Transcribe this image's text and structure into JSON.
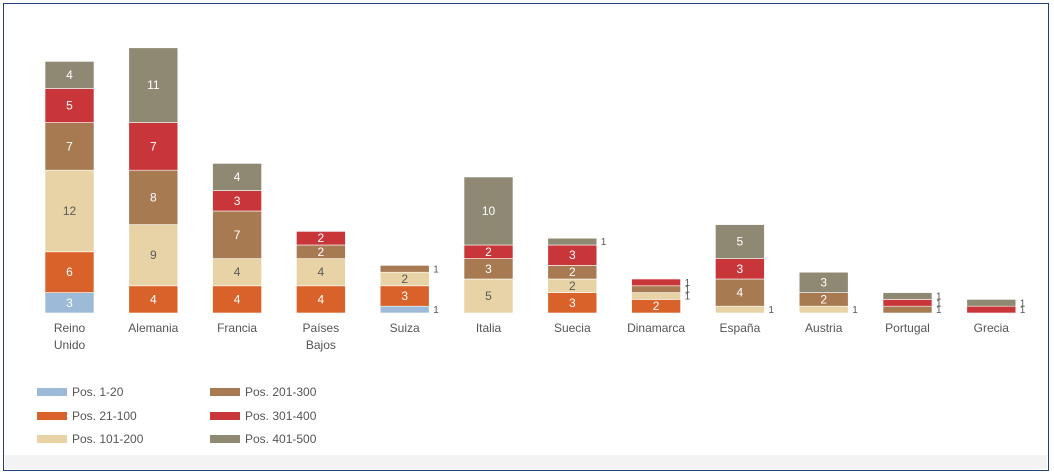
{
  "chart_data": {
    "type": "bar",
    "stacked": true,
    "categories": [
      [
        "Reino",
        "Unido"
      ],
      [
        "Alemania"
      ],
      [
        "Francia"
      ],
      [
        "Países",
        "Bajos"
      ],
      [
        "Suiza"
      ],
      [
        "Italia"
      ],
      [
        "Suecia"
      ],
      [
        "Dinamarca"
      ],
      [
        "España"
      ],
      [
        "Austria"
      ],
      [
        "Portugal"
      ],
      [
        "Grecia"
      ]
    ],
    "series": [
      {
        "name": "Pos. 1-20",
        "color": "#9dbbd9",
        "values": [
          3,
          0,
          0,
          0,
          1,
          0,
          0,
          0,
          0,
          0,
          0,
          0
        ]
      },
      {
        "name": "Pos. 21-100",
        "color": "#d9622a",
        "values": [
          6,
          4,
          4,
          4,
          3,
          0,
          3,
          2,
          0,
          0,
          0,
          0
        ]
      },
      {
        "name": "Pos. 101-200",
        "color": "#e8d3a6",
        "values": [
          12,
          9,
          4,
          4,
          2,
          5,
          2,
          1,
          1,
          1,
          0,
          0
        ]
      },
      {
        "name": "Pos. 201-300",
        "color": "#a87a52",
        "values": [
          7,
          8,
          7,
          2,
          1,
          3,
          2,
          1,
          4,
          2,
          1,
          0
        ]
      },
      {
        "name": "Pos. 301-400",
        "color": "#c8363a",
        "values": [
          5,
          7,
          3,
          2,
          0,
          2,
          3,
          1,
          3,
          0,
          1,
          1
        ]
      },
      {
        "name": "Pos. 401-500",
        "color": "#8f8873",
        "values": [
          4,
          11,
          4,
          0,
          0,
          10,
          1,
          0,
          5,
          3,
          1,
          1
        ]
      }
    ],
    "legend_position": "bottom-left",
    "grid": false
  }
}
